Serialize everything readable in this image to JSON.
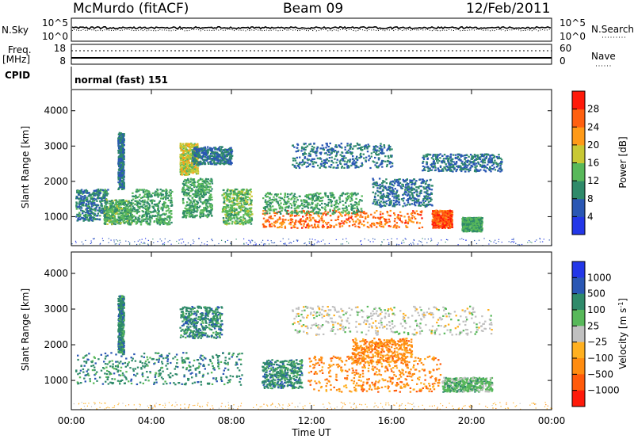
{
  "header": {
    "station": "McMurdo (fitACF)",
    "beam": "Beam 09",
    "date": "12/Feb/2011"
  },
  "status_panels": {
    "nsky_label": "N.Sky",
    "nsearch_label": "N.Search",
    "freq_label_line1": "Freq.",
    "freq_label_line2": "[MHz]",
    "nave_label": "Nave",
    "cpid_label": "CPID",
    "cpid_value": "normal (fast) 151",
    "noise_left_ticks": [
      "10^5",
      "10^0"
    ],
    "noise_right_ticks": [
      "10^5",
      "10^0"
    ],
    "freq_left_ticks": [
      "18",
      "8"
    ],
    "freq_right_ticks": [
      "60",
      "0"
    ],
    "colors": {
      "trace": "#000000"
    }
  },
  "chart_data": [
    {
      "type": "heatmap",
      "ylabel": "Slant Range [km]",
      "ylim": [
        180,
        4600
      ],
      "y_ticks": [
        "1000",
        "2000",
        "3000",
        "4000"
      ],
      "y_tick_values": [
        1000,
        2000,
        3000,
        4000
      ],
      "colorbar_label": "Power [dB]",
      "colorbar_ticks": [
        "4",
        "8",
        "12",
        "16",
        "20",
        "24",
        "28"
      ],
      "colorbar_tick_values": [
        4,
        8,
        12,
        16,
        20,
        24,
        28
      ],
      "colorbar_range": [
        0,
        32
      ],
      "colorbar_colors": [
        "#2337e8",
        "#2a57b4",
        "#2f8a6a",
        "#58b85a",
        "#c8c834",
        "#ff9a18",
        "#ff6010",
        "#ff1a0a"
      ],
      "scatter_regions": [
        {
          "t": [
            0.2,
            1.8
          ],
          "r": [
            900,
            1800
          ],
          "value": 9
        },
        {
          "t": [
            1.6,
            3.0
          ],
          "r": [
            800,
            1500
          ],
          "value": 13
        },
        {
          "t": [
            2.3,
            2.6
          ],
          "r": [
            1800,
            3400
          ],
          "value": 8
        },
        {
          "t": [
            3.0,
            5.0
          ],
          "r": [
            800,
            1800
          ],
          "value": 12
        },
        {
          "t": [
            5.4,
            6.3
          ],
          "r": [
            2200,
            3100
          ],
          "value": 18
        },
        {
          "t": [
            6.0,
            8.0
          ],
          "r": [
            2500,
            3000
          ],
          "value": 8
        },
        {
          "t": [
            5.5,
            7.0
          ],
          "r": [
            1000,
            2100
          ],
          "value": 12
        },
        {
          "t": [
            7.5,
            9.0
          ],
          "r": [
            800,
            1800
          ],
          "value": 14
        },
        {
          "t": [
            9.5,
            17.5
          ],
          "r": [
            700,
            1200
          ],
          "value": 25
        },
        {
          "t": [
            9.5,
            14.5
          ],
          "r": [
            1100,
            1700
          ],
          "value": 12
        },
        {
          "t": [
            15.0,
            18.0
          ],
          "r": [
            1300,
            2100
          ],
          "value": 8
        },
        {
          "t": [
            11.0,
            16.0
          ],
          "r": [
            2400,
            3100
          ],
          "value": 8
        },
        {
          "t": [
            17.5,
            21.5
          ],
          "r": [
            2300,
            2800
          ],
          "value": 8
        },
        {
          "t": [
            18.0,
            19.0
          ],
          "r": [
            700,
            1200
          ],
          "value": 27
        },
        {
          "t": [
            19.5,
            20.5
          ],
          "r": [
            600,
            1000
          ],
          "value": 12
        },
        {
          "t": [
            0.0,
            24.0
          ],
          "r": [
            200,
            400
          ],
          "value": 5
        }
      ]
    },
    {
      "type": "heatmap",
      "ylabel": "Slant Range [km]",
      "ylim": [
        180,
        4600
      ],
      "y_ticks": [
        "1000",
        "2000",
        "3000",
        "4000"
      ],
      "y_tick_values": [
        1000,
        2000,
        3000,
        4000
      ],
      "colorbar_label": "Velocity [m s",
      "colorbar_label_superscript": "-1",
      "colorbar_label_close": "]",
      "colorbar_ticks": [
        "1000",
        "500",
        "100",
        "25",
        "−25",
        "−100",
        "−500",
        "−1000"
      ],
      "colorbar_colors": [
        "#2337e8",
        "#2a57b4",
        "#2f8a6a",
        "#58b85a",
        "#c0c0c0",
        "#ffb020",
        "#ff8c10",
        "#ff5a0a",
        "#ff1a0a"
      ],
      "x_ticks": [
        "00:00",
        "04:00",
        "08:00",
        "12:00",
        "16:00",
        "20:00",
        "00:00"
      ],
      "x_tick_values": [
        0,
        4,
        8,
        12,
        16,
        20,
        24
      ],
      "xlim": [
        0,
        24
      ],
      "xlabel": "Time UT",
      "scatter_regions": [
        {
          "t": [
            0.2,
            8.5
          ],
          "r": [
            900,
            1800
          ],
          "value": 2
        },
        {
          "t": [
            2.3,
            2.6
          ],
          "r": [
            1800,
            3400
          ],
          "value": 2
        },
        {
          "t": [
            5.4,
            7.5
          ],
          "r": [
            2200,
            3100
          ],
          "value": 2
        },
        {
          "t": [
            9.5,
            11.5
          ],
          "r": [
            800,
            1600
          ],
          "value": 2
        },
        {
          "t": [
            11.8,
            18.5
          ],
          "r": [
            700,
            1700
          ],
          "value": 6
        },
        {
          "t": [
            14.0,
            17.0
          ],
          "r": [
            1500,
            2200
          ],
          "value": 6
        },
        {
          "t": [
            11.0,
            21.0
          ],
          "r": [
            2300,
            3100
          ],
          "value": 4
        },
        {
          "t": [
            18.5,
            21.0
          ],
          "r": [
            700,
            1100
          ],
          "value": 3
        },
        {
          "t": [
            0.0,
            24.0
          ],
          "r": [
            200,
            400
          ],
          "value": 5
        }
      ]
    }
  ]
}
